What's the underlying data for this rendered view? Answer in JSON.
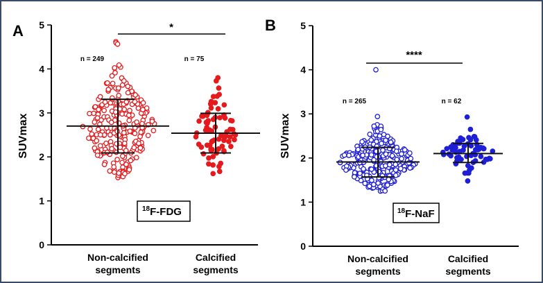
{
  "colors": {
    "fdg": "#e41a1c",
    "naf": "#1f1fd6",
    "border": "#3a4a6b"
  },
  "chart_data": [
    {
      "type": "scatter",
      "panel_label": "A",
      "tracer": {
        "superscript": "18",
        "name": "F-FDG"
      },
      "ylabel": "SUVmax",
      "ylim": [
        0,
        5
      ],
      "yticks": [
        "0",
        "1",
        "2",
        "3",
        "4",
        "5"
      ],
      "categories": [
        {
          "line1": "Non-calcified",
          "line2": "segments"
        },
        {
          "line1": "Calcified",
          "line2": "segments"
        }
      ],
      "n_labels": [
        "n = 249",
        "n = 75"
      ],
      "significance": "*",
      "series": [
        {
          "name": "Non-calcified segments",
          "n": 249,
          "marker": "open",
          "mean": 2.7,
          "sd_low": 2.09,
          "sd_high": 3.31,
          "min": 1.53,
          "max": 4.62
        },
        {
          "name": "Calcified segments",
          "n": 75,
          "marker": "filled",
          "mean": 2.54,
          "sd_low": 2.09,
          "sd_high": 2.99,
          "min": 1.62,
          "max": 3.8
        }
      ]
    },
    {
      "type": "scatter",
      "panel_label": "B",
      "tracer": {
        "superscript": "18",
        "name": "F-NaF"
      },
      "ylabel": "SUVmax",
      "ylim": [
        0,
        5
      ],
      "yticks": [
        "0",
        "1",
        "2",
        "3",
        "4",
        "5"
      ],
      "categories": [
        {
          "line1": "Non-calcified",
          "line2": "segments"
        },
        {
          "line1": "Calcified",
          "line2": "segments"
        }
      ],
      "n_labels": [
        "n = 265",
        "n = 62"
      ],
      "significance": "****",
      "series": [
        {
          "name": "Non-calcified segments",
          "n": 265,
          "marker": "open",
          "mean": 1.91,
          "sd_low": 1.57,
          "sd_high": 2.24,
          "min": 1.25,
          "max": 4.0
        },
        {
          "name": "Calcified segments",
          "n": 62,
          "marker": "filled",
          "mean": 2.1,
          "sd_low": 1.9,
          "sd_high": 2.33,
          "min": 1.48,
          "max": 2.93
        }
      ]
    }
  ]
}
